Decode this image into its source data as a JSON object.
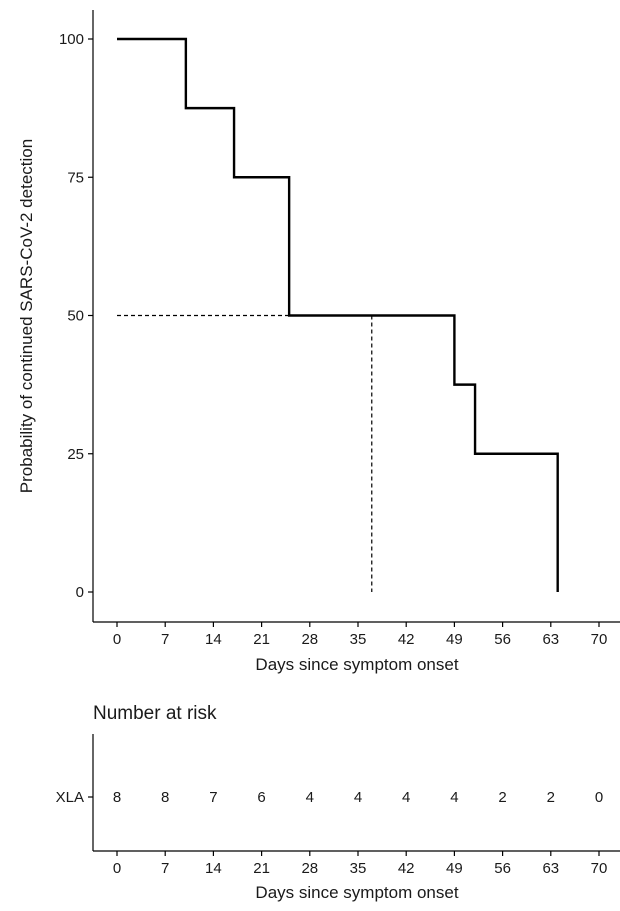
{
  "chart_data": [
    {
      "type": "line",
      "subtype": "kaplan-meier-step",
      "ylabel": "Probability of continued SARS-CoV-2 detection",
      "xlabel": "Days since symptom onset",
      "xlim": [
        0,
        70
      ],
      "ylim": [
        0,
        100
      ],
      "x_ticks": [
        "0",
        "7",
        "14",
        "21",
        "28",
        "35",
        "42",
        "49",
        "56",
        "63",
        "70"
      ],
      "y_ticks": [
        "0",
        "25",
        "50",
        "75",
        "100"
      ],
      "grid": false,
      "series": [
        {
          "color": "#000000",
          "x": [
            0,
            10,
            17,
            25,
            49,
            52,
            64
          ],
          "y": [
            100,
            87.5,
            75,
            50,
            37.5,
            25,
            0
          ]
        }
      ],
      "median_reference": {
        "x": 37,
        "y": 50,
        "style": "dashed"
      }
    },
    {
      "type": "table",
      "title": "Number at risk",
      "xlabel": "Days since symptom onset",
      "x_ticks": [
        "0",
        "7",
        "14",
        "21",
        "28",
        "35",
        "42",
        "49",
        "56",
        "63",
        "70"
      ],
      "rows": [
        {
          "label": "XLA",
          "values": [
            "8",
            "8",
            "7",
            "6",
            "4",
            "4",
            "4",
            "4",
            "2",
            "2",
            "0"
          ]
        }
      ]
    }
  ]
}
